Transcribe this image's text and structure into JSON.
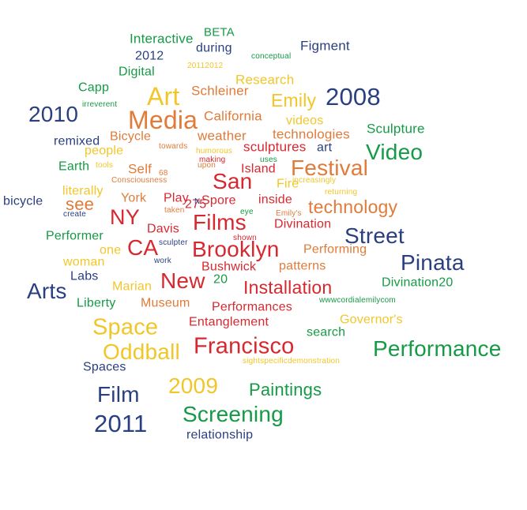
{
  "colors": {
    "blue": "#2a3f80",
    "green": "#159a45",
    "orange": "#e07b39",
    "red": "#d7282f",
    "yellow": "#f2c629"
  },
  "words": [
    {
      "text": "Interactive",
      "color": "green"
    },
    {
      "text": "BETA",
      "color": "green"
    },
    {
      "text": "2012",
      "color": "blue"
    },
    {
      "text": "during",
      "color": "blue"
    },
    {
      "text": "conceptual",
      "color": "green"
    },
    {
      "text": "Figment",
      "color": "blue"
    },
    {
      "text": "Digital",
      "color": "green"
    },
    {
      "text": "20112012",
      "color": "yellow"
    },
    {
      "text": "Research",
      "color": "yellow"
    },
    {
      "text": "Capp",
      "color": "green"
    },
    {
      "text": "Schleiner",
      "color": "orange"
    },
    {
      "text": "Art",
      "color": "yellow"
    },
    {
      "text": "Emily",
      "color": "yellow"
    },
    {
      "text": "2008",
      "color": "blue"
    },
    {
      "text": "irreverent",
      "color": "green"
    },
    {
      "text": "2010",
      "color": "blue"
    },
    {
      "text": "California",
      "color": "orange"
    },
    {
      "text": "Media",
      "color": "orange"
    },
    {
      "text": "videos",
      "color": "yellow"
    },
    {
      "text": "Sculpture",
      "color": "green"
    },
    {
      "text": "Bicycle",
      "color": "orange"
    },
    {
      "text": "weather",
      "color": "orange"
    },
    {
      "text": "technologies",
      "color": "orange"
    },
    {
      "text": "remixed",
      "color": "blue"
    },
    {
      "text": "towards",
      "color": "orange"
    },
    {
      "text": "humorous",
      "color": "yellow"
    },
    {
      "text": "sculptures",
      "color": "red"
    },
    {
      "text": "art",
      "color": "blue"
    },
    {
      "text": "Video",
      "color": "green"
    },
    {
      "text": "people",
      "color": "yellow"
    },
    {
      "text": "making",
      "color": "red"
    },
    {
      "text": "uses",
      "color": "green"
    },
    {
      "text": "Earth",
      "color": "green"
    },
    {
      "text": "tools",
      "color": "yellow"
    },
    {
      "text": "Self",
      "color": "orange"
    },
    {
      "text": "68",
      "color": "orange"
    },
    {
      "text": "upon",
      "color": "orange"
    },
    {
      "text": "Island",
      "color": "red"
    },
    {
      "text": "Festival",
      "color": "orange"
    },
    {
      "text": "Consciousness",
      "color": "orange"
    },
    {
      "text": "San",
      "color": "red"
    },
    {
      "text": "Fire",
      "color": "yellow"
    },
    {
      "text": "increasingly",
      "color": "yellow"
    },
    {
      "text": "literally",
      "color": "yellow"
    },
    {
      "text": "275",
      "color": "red"
    },
    {
      "text": "returning",
      "color": "yellow"
    },
    {
      "text": "bicycle",
      "color": "blue"
    },
    {
      "text": "see",
      "color": "orange"
    },
    {
      "text": "York",
      "color": "orange"
    },
    {
      "text": "Play",
      "color": "red"
    },
    {
      "text": "N",
      "color": "blue"
    },
    {
      "text": "Spore",
      "color": "red"
    },
    {
      "text": "inside",
      "color": "red"
    },
    {
      "text": "technology",
      "color": "orange"
    },
    {
      "text": "create",
      "color": "blue"
    },
    {
      "text": "taken",
      "color": "orange"
    },
    {
      "text": "eye",
      "color": "green"
    },
    {
      "text": "Emily's",
      "color": "orange"
    },
    {
      "text": "NY",
      "color": "red"
    },
    {
      "text": "Films",
      "color": "red"
    },
    {
      "text": "Divination",
      "color": "red"
    },
    {
      "text": "Davis",
      "color": "red"
    },
    {
      "text": "Street",
      "color": "blue"
    },
    {
      "text": "Performer",
      "color": "green"
    },
    {
      "text": "sculpter",
      "color": "blue"
    },
    {
      "text": "shown",
      "color": "red"
    },
    {
      "text": "CA",
      "color": "red"
    },
    {
      "text": "Brooklyn",
      "color": "red"
    },
    {
      "text": "Performing",
      "color": "orange"
    },
    {
      "text": "one",
      "color": "yellow"
    },
    {
      "text": "Pinata",
      "color": "blue"
    },
    {
      "text": "woman",
      "color": "yellow"
    },
    {
      "text": "work",
      "color": "blue"
    },
    {
      "text": "Bushwick",
      "color": "red"
    },
    {
      "text": "patterns",
      "color": "orange"
    },
    {
      "text": "Labs",
      "color": "blue"
    },
    {
      "text": "New",
      "color": "red"
    },
    {
      "text": "20",
      "color": "green"
    },
    {
      "text": "Divination20",
      "color": "green"
    },
    {
      "text": "Arts",
      "color": "blue"
    },
    {
      "text": "Marian",
      "color": "yellow"
    },
    {
      "text": "Installation",
      "color": "red"
    },
    {
      "text": "wwwcordialemilycom",
      "color": "green"
    },
    {
      "text": "Liberty",
      "color": "green"
    },
    {
      "text": "Museum",
      "color": "orange"
    },
    {
      "text": "Performances",
      "color": "red"
    },
    {
      "text": "Governor's",
      "color": "yellow"
    },
    {
      "text": "Space",
      "color": "yellow"
    },
    {
      "text": "Entanglement",
      "color": "red"
    },
    {
      "text": "search",
      "color": "green"
    },
    {
      "text": "Performance",
      "color": "green"
    },
    {
      "text": "Oddball",
      "color": "yellow"
    },
    {
      "text": "Francisco",
      "color": "red"
    },
    {
      "text": "sightspecificdemonstration",
      "color": "yellow"
    },
    {
      "text": "Spaces",
      "color": "blue"
    },
    {
      "text": "2009",
      "color": "yellow"
    },
    {
      "text": "Paintings",
      "color": "green"
    },
    {
      "text": "Film",
      "color": "blue"
    },
    {
      "text": "Screening",
      "color": "green"
    },
    {
      "text": "2011",
      "color": "blue"
    },
    {
      "text": "relationship",
      "color": "blue"
    }
  ]
}
